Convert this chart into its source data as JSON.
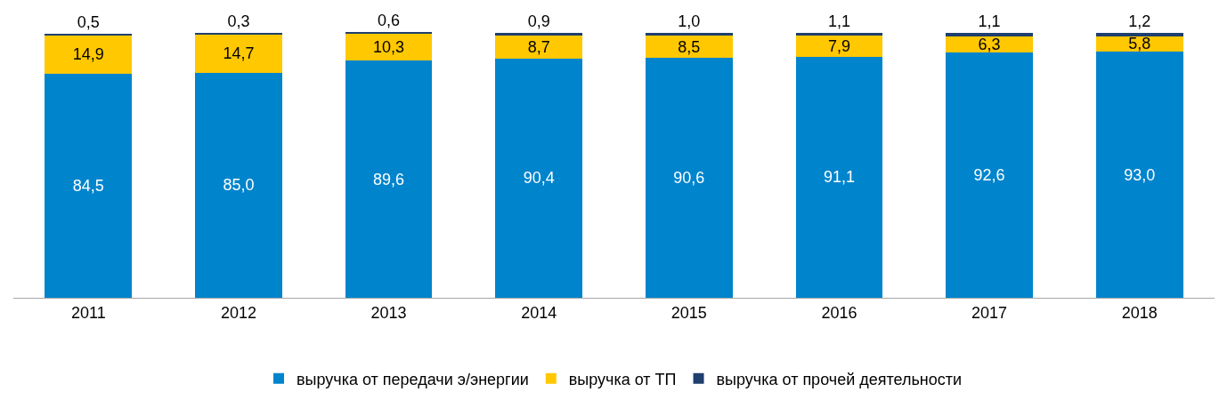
{
  "chart_data": {
    "type": "bar",
    "stacked": true,
    "legend": "bottom",
    "categories": [
      "2011",
      "2012",
      "2013",
      "2014",
      "2015",
      "2016",
      "2017",
      "2018"
    ],
    "series": [
      {
        "name": "выручка от передачи э/энергии",
        "color": "#0084cc",
        "values": [
          84.5,
          85.0,
          89.6,
          90.4,
          90.6,
          91.1,
          92.6,
          93.0
        ],
        "value_labels": [
          "84,5",
          "85,0",
          "89,6",
          "90,4",
          "90,6",
          "91,1",
          "92,6",
          "93,0"
        ]
      },
      {
        "name": "выручка от ТП",
        "color": "#ffc800",
        "values": [
          14.9,
          14.7,
          10.3,
          8.7,
          8.5,
          7.9,
          6.3,
          5.8
        ],
        "value_labels": [
          "14,9",
          "14,7",
          "10,3",
          "8,7",
          "8,5",
          "7,9",
          "6,3",
          "5,8"
        ]
      },
      {
        "name": "выручка от прочей деятельности",
        "color": "#1f3f6e",
        "values": [
          0.5,
          0.3,
          0.6,
          0.9,
          1.0,
          1.1,
          1.1,
          1.2
        ],
        "value_labels": [
          "0,5",
          "0,3",
          "0,6",
          "0,9",
          "1,0",
          "1,1",
          "1,1",
          "1,2"
        ]
      }
    ]
  }
}
